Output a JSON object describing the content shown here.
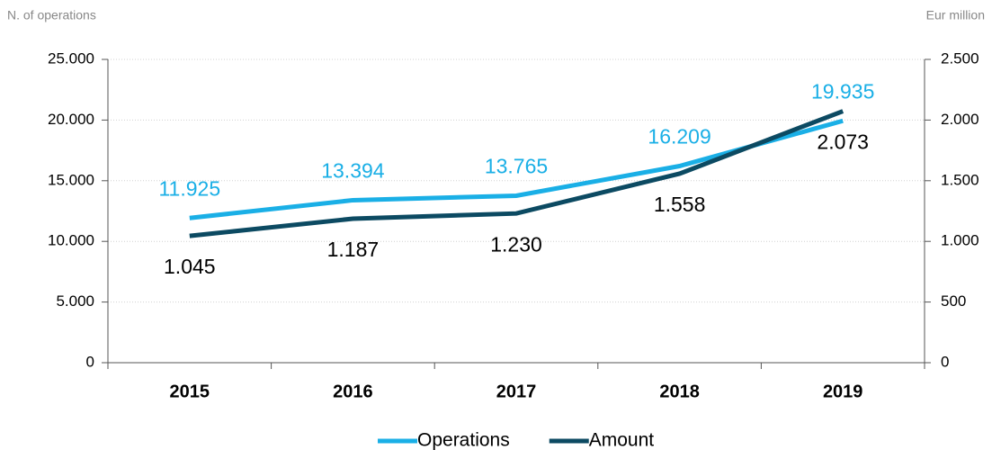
{
  "chart_data": {
    "type": "line",
    "y_label": "N. of operations",
    "y2_label": "Eur million",
    "categories": [
      "2015",
      "2016",
      "2017",
      "2018",
      "2019"
    ],
    "series": [
      {
        "name": "Operations",
        "color": "#1aafe6",
        "values": [
          11925,
          13394,
          13765,
          16209,
          19935
        ],
        "value_labels": [
          "11.925",
          "13.394",
          "13.765",
          "16.209",
          "19.935"
        ]
      },
      {
        "name": "Amount",
        "color": "#0c4a62",
        "axis": "y2",
        "values": [
          1045,
          1187,
          1230,
          1558,
          2073
        ],
        "value_labels": [
          "1.045",
          "1.187",
          "1.230",
          "1.558",
          "2.073"
        ]
      }
    ],
    "ylim": [
      0,
      25000
    ],
    "yticks": [
      0,
      {
        "value": 5000,
        "label": "5.000"
      },
      {
        "value": 10000,
        "label": "10.000"
      },
      {
        "value": 15000,
        "label": "15.000"
      },
      {
        "value": 20000,
        "label": "20.000"
      },
      {
        "value": 25000,
        "label": "25.000"
      }
    ],
    "y2lim": [
      0,
      2500
    ],
    "y2ticks": [
      0,
      500,
      {
        "value": 1000,
        "label": "1.000"
      },
      {
        "value": 1500,
        "label": "1.500"
      },
      {
        "value": 2000,
        "label": "2.000"
      },
      {
        "value": 2500,
        "label": "2.500"
      }
    ],
    "grid": true,
    "legend": "bottom"
  }
}
